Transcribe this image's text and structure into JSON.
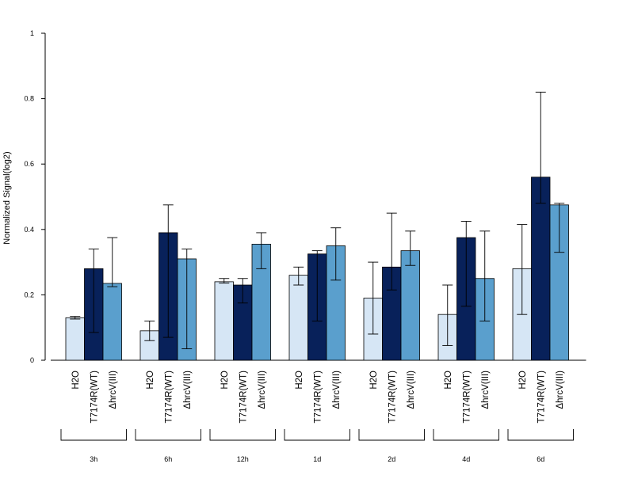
{
  "chart_data": {
    "type": "bar",
    "title": "",
    "xlabel": "",
    "ylabel": "Normalized Signal(log2)",
    "ylim": [
      0,
      1
    ],
    "yticks": [
      0,
      0.2,
      0.4,
      0.6,
      0.8,
      1
    ],
    "ytick_labels": [
      "0",
      "0.2",
      "0.4",
      "0.6",
      "0.8",
      "1"
    ],
    "grid": false,
    "legend": "none",
    "groups": [
      "3h",
      "6h",
      "12h",
      "1d",
      "2d",
      "4d",
      "6d"
    ],
    "series": [
      {
        "label": "H2O",
        "color": "#d6e6f5",
        "values": [
          0.13,
          0.09,
          0.24,
          0.26,
          0.19,
          0.14,
          0.28
        ],
        "err_low": [
          0.126,
          0.06,
          0.236,
          0.23,
          0.08,
          0.045,
          0.14
        ],
        "err_high": [
          0.134,
          0.12,
          0.25,
          0.285,
          0.3,
          0.23,
          0.415
        ]
      },
      {
        "label": "T7174R(WT)",
        "color": "#08215a",
        "values": [
          0.28,
          0.39,
          0.23,
          0.325,
          0.285,
          0.375,
          0.56
        ],
        "err_low": [
          0.085,
          0.07,
          0.175,
          0.12,
          0.215,
          0.165,
          0.48
        ],
        "err_high": [
          0.34,
          0.475,
          0.25,
          0.335,
          0.45,
          0.425,
          0.82
        ]
      },
      {
        "label": "ΔhrcV(III)",
        "color": "#5a9fcd",
        "values": [
          0.235,
          0.31,
          0.355,
          0.35,
          0.335,
          0.25,
          0.475
        ],
        "err_low": [
          0.225,
          0.035,
          0.28,
          0.245,
          0.29,
          0.12,
          0.33
        ],
        "err_high": [
          0.375,
          0.34,
          0.39,
          0.405,
          0.395,
          0.395,
          0.48
        ]
      }
    ]
  }
}
